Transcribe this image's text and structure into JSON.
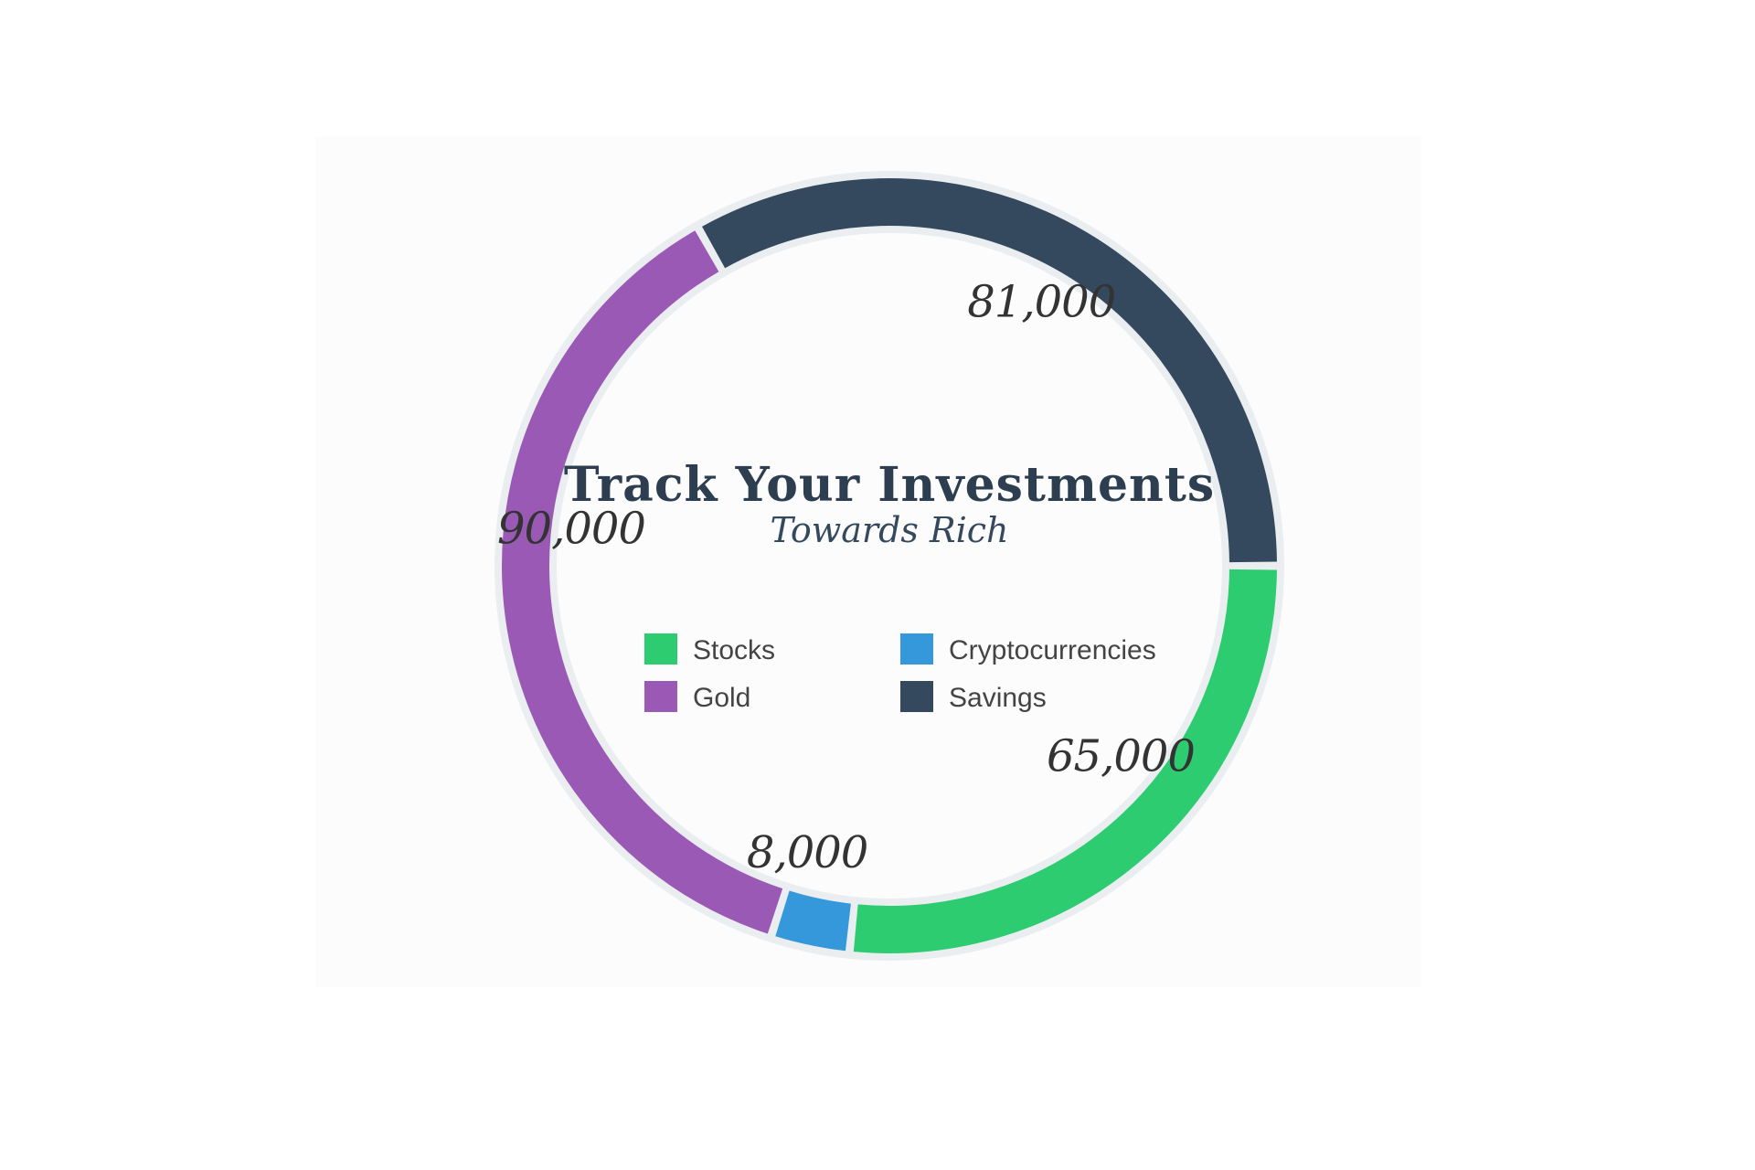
{
  "chart_data": {
    "type": "pie",
    "variant": "donut",
    "title": "Track Your Investments",
    "subtitle": "Towards Rich",
    "categories": [
      "Stocks",
      "Cryptocurrencies",
      "Gold",
      "Savings"
    ],
    "values": [
      65000,
      8000,
      90000,
      81000
    ],
    "value_labels": [
      "65,000",
      "8,000",
      "90,000",
      "81,000"
    ],
    "colors": [
      "#2ecc71",
      "#3498db",
      "#9b59b6",
      "#34495e"
    ],
    "track_color": "#eaeef0",
    "legend_placement": "center"
  }
}
